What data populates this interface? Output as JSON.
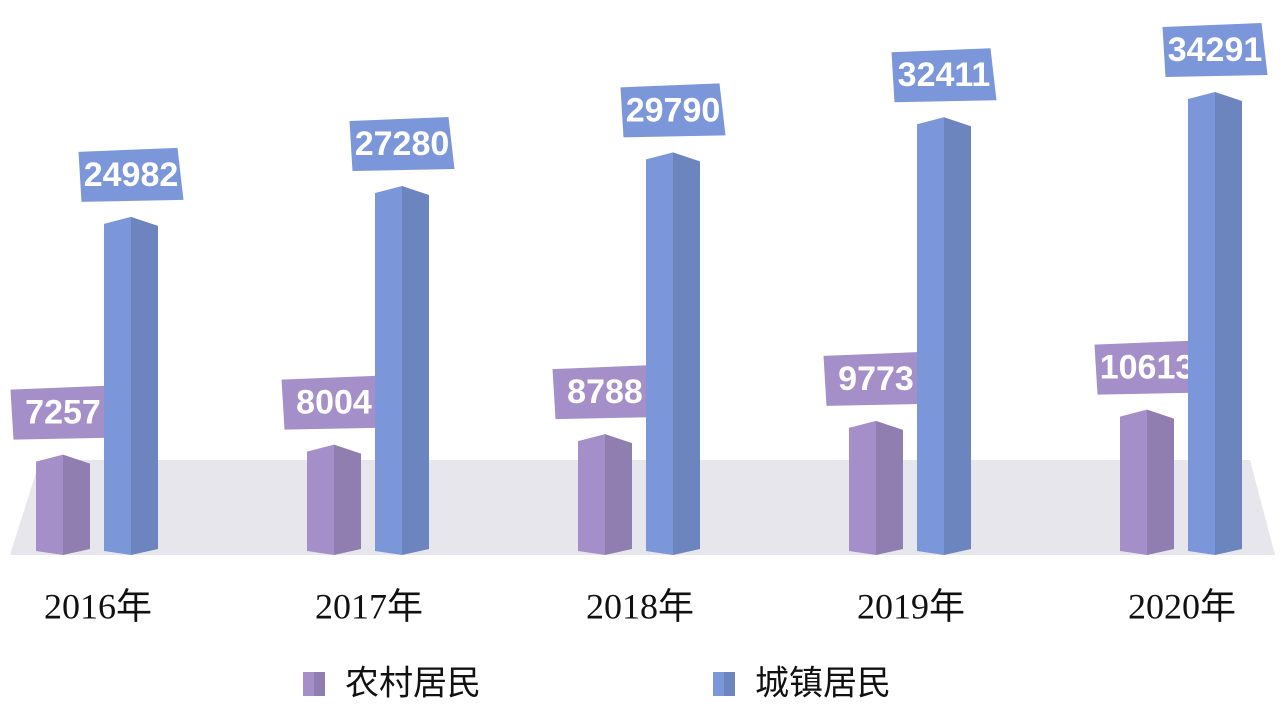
{
  "chart_data": {
    "type": "bar3d",
    "categories": [
      "2016年",
      "2017年",
      "2018年",
      "2019年",
      "2020年"
    ],
    "series": [
      {
        "name": "农村居民",
        "color": "#a58fc9",
        "values": [
          7257,
          8004,
          8788,
          9773,
          10613
        ]
      },
      {
        "name": "城镇居民",
        "color": "#7b97d9",
        "values": [
          24982,
          27280,
          29790,
          32411,
          34291
        ]
      }
    ]
  }
}
